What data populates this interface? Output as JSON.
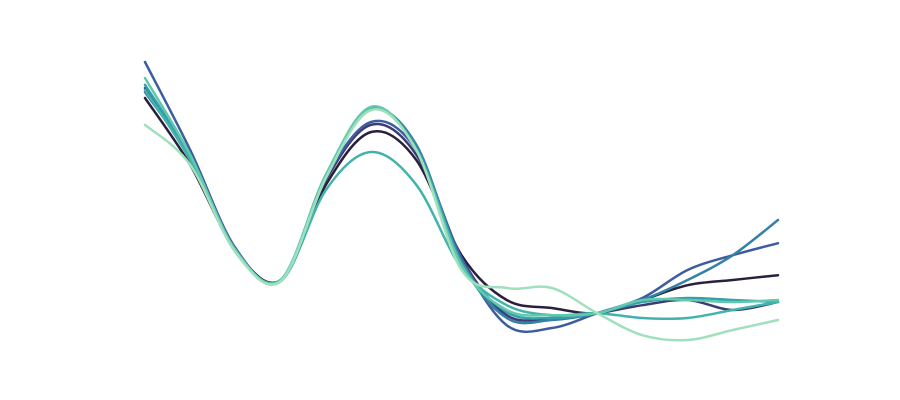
{
  "chart_data": {
    "type": "line",
    "x": [
      0,
      1,
      2,
      3,
      4,
      5,
      6,
      7,
      8,
      9,
      10,
      11,
      12,
      13,
      14
    ],
    "xlim": [
      0,
      14
    ],
    "ylim": [
      -4,
      4
    ],
    "series": [
      {
        "color": "#2a1f3d",
        "values": [
          2.55,
          0.88,
          -1.25,
          -2,
          0.38,
          1.7,
          1,
          -1.38,
          -2.5,
          -2.7,
          -2.83,
          -2.5,
          -2.13,
          -2,
          -1.88
        ]
      },
      {
        "color": "#3b3c73",
        "values": [
          2.8,
          1,
          -1.25,
          -2,
          0.5,
          1.88,
          1.13,
          -1.45,
          -2.88,
          -2.95,
          -2.83,
          -2.63,
          -2.5,
          -2.75,
          -2.55
        ]
      },
      {
        "color": "#3f5d9e",
        "values": [
          3.45,
          1.25,
          -1.2,
          -2.03,
          0.55,
          1.95,
          1.25,
          -1.45,
          -3.13,
          -3.2,
          -2.83,
          -2.45,
          -1.75,
          -1.38,
          -1.08
        ]
      },
      {
        "color": "#3581a5",
        "values": [
          2.7,
          1.05,
          -1.25,
          -2,
          0.63,
          2.25,
          1.38,
          -1.55,
          -2.95,
          -3,
          -2.83,
          -2.5,
          -2,
          -1.38,
          -0.5
        ]
      },
      {
        "color": "#359fab",
        "values": [
          2.88,
          1.08,
          -1.25,
          -2,
          0.6,
          2.3,
          1.3,
          -1.55,
          -2.8,
          -2.95,
          -2.83,
          -2.55,
          -2.45,
          -2.5,
          -2.55
        ]
      },
      {
        "color": "#42b3ab",
        "values": [
          2.75,
          1,
          -1.3,
          -2.03,
          0.25,
          1.2,
          0.38,
          -1.7,
          -2.63,
          -2.88,
          -2.83,
          -2.95,
          -2.95,
          -2.75,
          -2.55
        ]
      },
      {
        "color": "#60c9ae",
        "values": [
          3.05,
          1.13,
          -1.25,
          -2,
          0.63,
          2.33,
          1.25,
          -1.63,
          -2.75,
          -2.88,
          -2.83,
          -2.5,
          -2.5,
          -2.55,
          -2.5
        ]
      },
      {
        "color": "#a0e0bd",
        "values": [
          1.88,
          0.88,
          -1.3,
          -2.03,
          0.55,
          2.25,
          1.25,
          -1.75,
          -2.2,
          -2.2,
          -2.83,
          -3.38,
          -3.5,
          -3.25,
          -3
        ]
      }
    ]
  }
}
